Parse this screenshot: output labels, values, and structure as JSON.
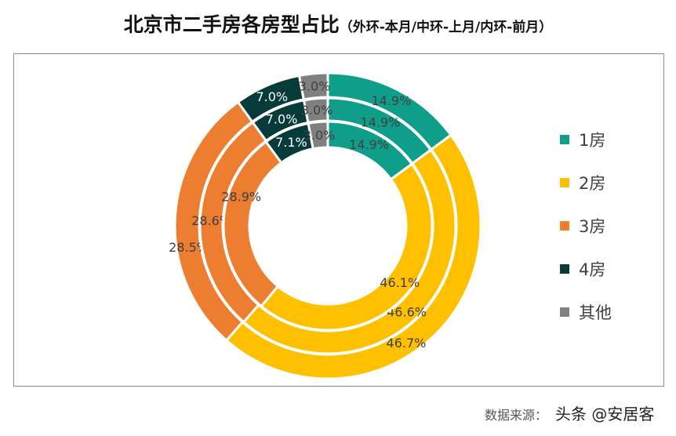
{
  "title": {
    "main": "北京市二手房各房型占比",
    "sub": "（外环-本月/中环-上月/内环-前月）"
  },
  "chart_data": {
    "type": "donut",
    "categories": [
      "1房",
      "2房",
      "3房",
      "4房",
      "其他"
    ],
    "colors": [
      "#0E9E8A",
      "#FFC000",
      "#ED7D31",
      "#073B3A",
      "#808080"
    ],
    "label_colors": [
      "#404040",
      "#404040",
      "#404040",
      "#FFFFFF",
      "#404040"
    ],
    "rings": [
      {
        "name": "本月",
        "position": "outer",
        "values": [
          14.9,
          46.7,
          28.5,
          7.0,
          3.0
        ],
        "labels": [
          "14.9%",
          "46.7%",
          "28.5%",
          "7.0%",
          "3.0%"
        ]
      },
      {
        "name": "上月",
        "position": "middle",
        "values": [
          14.9,
          46.6,
          28.6,
          7.0,
          3.0
        ],
        "labels": [
          "14.9%",
          "46.6%",
          "28.6%",
          "7.0%",
          "3.0%"
        ]
      },
      {
        "name": "前月",
        "position": "inner",
        "values": [
          14.9,
          46.1,
          28.9,
          7.1,
          3.0
        ],
        "labels": [
          "14.9%",
          "46.1%",
          "28.9%",
          "7.1%",
          "3.0%"
        ]
      }
    ],
    "legend": "right"
  },
  "source": "数据来源：",
  "watermark": "头条 @安居客"
}
